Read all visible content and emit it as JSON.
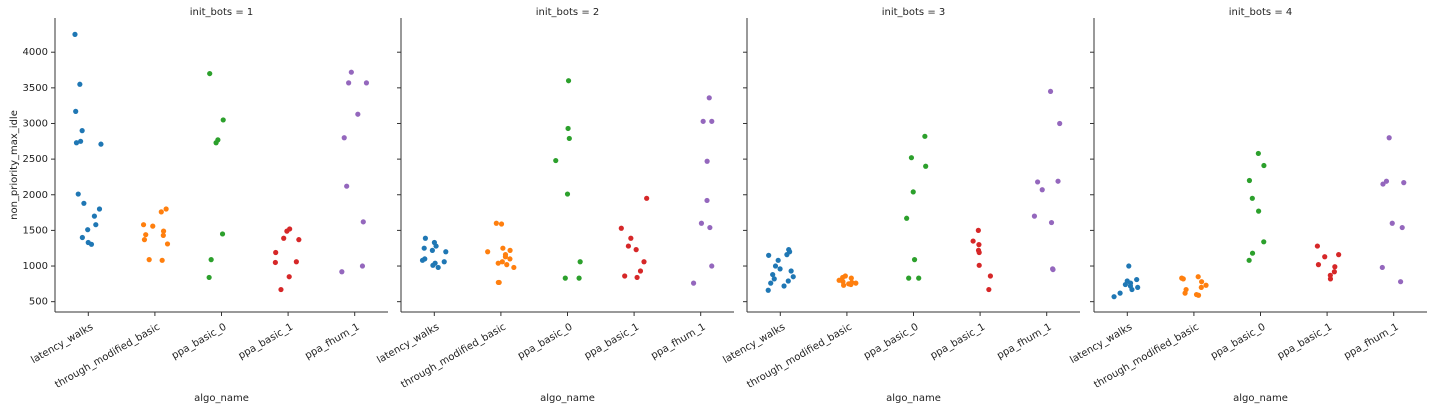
{
  "chart_data": [
    {
      "type": "strip",
      "title": "init_bots = 1",
      "xlabel": "algo_name",
      "ylabel": "non_priority_max_idle",
      "categories": [
        "latency_walks",
        "through_modified_basic",
        "ppa_basic_0",
        "ppa_basic_1",
        "ppa_fhum_1"
      ],
      "colors": [
        "#1f77b4",
        "#ff7f0e",
        "#2ca02c",
        "#d62728",
        "#9467bd"
      ],
      "values": [
        [
          4250,
          3550,
          3170,
          2900,
          2750,
          2730,
          2710,
          2010,
          1880,
          1800,
          1700,
          1580,
          1510,
          1400,
          1330,
          1305
        ],
        [
          1800,
          1760,
          1580,
          1560,
          1490,
          1440,
          1430,
          1370,
          1310,
          1090,
          1080
        ],
        [
          3700,
          3050,
          2770,
          2730,
          1450,
          1090,
          840
        ],
        [
          1520,
          1490,
          1390,
          1370,
          1190,
          1060,
          1050,
          850,
          670
        ],
        [
          3720,
          3570,
          3570,
          3130,
          2800,
          2120,
          1620,
          1000,
          920
        ]
      ],
      "ylim": [
        355,
        4480
      ],
      "yticks": [
        500,
        1000,
        1500,
        2000,
        2500,
        3000,
        3500,
        4000
      ]
    },
    {
      "type": "strip",
      "title": "init_bots = 2",
      "xlabel": "algo_name",
      "categories": [
        "latency_walks",
        "through_modified_basic",
        "ppa_basic_0",
        "ppa_basic_1",
        "ppa_fhum_1"
      ],
      "colors": [
        "#1f77b4",
        "#ff7f0e",
        "#2ca02c",
        "#d62728",
        "#9467bd"
      ],
      "values": [
        [
          1390,
          1330,
          1280,
          1250,
          1220,
          1200,
          1100,
          1080,
          1060,
          1040,
          1010,
          980
        ],
        [
          1600,
          1590,
          1250,
          1220,
          1200,
          1160,
          1130,
          1100,
          1060,
          1040,
          1020,
          980,
          770,
          770
        ],
        [
          3600,
          2930,
          2790,
          2480,
          2010,
          1060,
          830,
          830
        ],
        [
          1950,
          1530,
          1390,
          1280,
          1230,
          1060,
          930,
          860,
          840
        ],
        [
          3360,
          3030,
          3030,
          2470,
          1920,
          1600,
          1540,
          1000,
          760
        ]
      ],
      "ylim": [
        355,
        4480
      ],
      "yticks": [
        500,
        1000,
        1500,
        2000,
        2500,
        3000,
        3500,
        4000
      ]
    },
    {
      "type": "strip",
      "title": "init_bots = 3",
      "xlabel": "algo_name",
      "categories": [
        "latency_walks",
        "through_modified_basic",
        "ppa_basic_0",
        "ppa_basic_1",
        "ppa_fhum_1"
      ],
      "colors": [
        "#1f77b4",
        "#ff7f0e",
        "#2ca02c",
        "#d62728",
        "#9467bd"
      ],
      "values": [
        [
          1230,
          1200,
          1160,
          1150,
          1080,
          1000,
          960,
          930,
          880,
          850,
          820,
          790,
          760,
          720,
          660
        ],
        [
          860,
          840,
          830,
          800,
          780,
          770,
          760,
          750,
          740,
          730
        ],
        [
          2820,
          2520,
          2400,
          2040,
          1670,
          1090,
          830,
          830
        ],
        [
          1500,
          1350,
          1300,
          1220,
          1190,
          1010,
          860,
          670
        ],
        [
          3450,
          3000,
          2190,
          2180,
          2070,
          1700,
          1610,
          960,
          950
        ]
      ],
      "ylim": [
        355,
        4480
      ],
      "yticks": [
        500,
        1000,
        1500,
        2000,
        2500,
        3000,
        3500,
        4000
      ]
    },
    {
      "type": "strip",
      "title": "init_bots = 4",
      "xlabel": "algo_name",
      "categories": [
        "latency_walks",
        "through_modified_basic",
        "ppa_basic_0",
        "ppa_basic_1",
        "ppa_fhum_1"
      ],
      "colors": [
        "#1f77b4",
        "#ff7f0e",
        "#2ca02c",
        "#d62728",
        "#9467bd"
      ],
      "values": [
        [
          1000,
          810,
          790,
          760,
          740,
          720,
          700,
          670,
          620,
          570
        ],
        [
          850,
          830,
          820,
          780,
          730,
          700,
          670,
          620,
          600,
          590
        ],
        [
          2580,
          2410,
          2200,
          1950,
          1770,
          1340,
          1180,
          1080
        ],
        [
          1280,
          1160,
          1130,
          1020,
          990,
          920,
          870,
          820
        ],
        [
          2800,
          2190,
          2170,
          2150,
          1600,
          1540,
          980,
          780
        ]
      ],
      "ylim": [
        355,
        4480
      ],
      "yticks": [
        500,
        1000,
        1500,
        2000,
        2500,
        3000,
        3500,
        4000
      ]
    }
  ]
}
